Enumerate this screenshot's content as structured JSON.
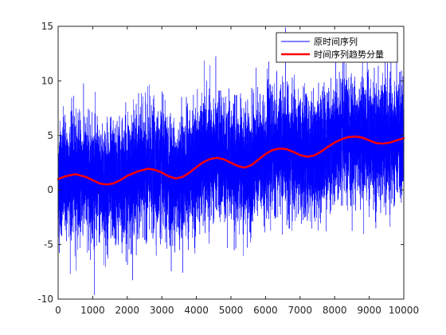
{
  "chart_data": {
    "type": "line",
    "title": "",
    "xlabel": "",
    "ylabel": "",
    "xlim": [
      0,
      10000
    ],
    "ylim": [
      -10,
      15
    ],
    "xticks": [
      0,
      1000,
      2000,
      3000,
      4000,
      5000,
      6000,
      7000,
      8000,
      9000,
      10000
    ],
    "yticks": [
      -10,
      -5,
      0,
      5,
      10,
      15
    ],
    "grid": false,
    "box": true,
    "legend_position": "top-right",
    "series": [
      {
        "name": "原时间序列",
        "color": "#0000ff",
        "style": "noisy",
        "approx_noise_band": "about ±5 around the trend, peaks near 15 and troughs near -10",
        "n_points": 10000
      },
      {
        "name": "时间序列趋势分量",
        "color": "#ff0000",
        "style": "thick",
        "x": [
          0,
          200,
          500,
          800,
          1000,
          1200,
          1400,
          1600,
          1800,
          2000,
          2300,
          2600,
          2800,
          3000,
          3200,
          3400,
          3600,
          3800,
          4000,
          4200,
          4400,
          4600,
          4800,
          5000,
          5200,
          5400,
          5600,
          5800,
          6000,
          6200,
          6400,
          6600,
          6800,
          7000,
          7200,
          7400,
          7600,
          7800,
          8000,
          8200,
          8400,
          8600,
          8800,
          9000,
          9200,
          9400,
          9600,
          9800,
          10000
        ],
        "y": [
          1.0,
          1.25,
          1.45,
          1.2,
          0.9,
          0.6,
          0.5,
          0.6,
          0.9,
          1.3,
          1.7,
          1.95,
          1.85,
          1.6,
          1.25,
          1.05,
          1.2,
          1.6,
          2.1,
          2.55,
          2.85,
          2.95,
          2.8,
          2.5,
          2.2,
          2.05,
          2.3,
          2.8,
          3.3,
          3.65,
          3.8,
          3.75,
          3.5,
          3.2,
          3.05,
          3.15,
          3.5,
          3.95,
          4.35,
          4.65,
          4.85,
          4.9,
          4.8,
          4.55,
          4.3,
          4.25,
          4.35,
          4.55,
          4.75
        ]
      }
    ]
  }
}
